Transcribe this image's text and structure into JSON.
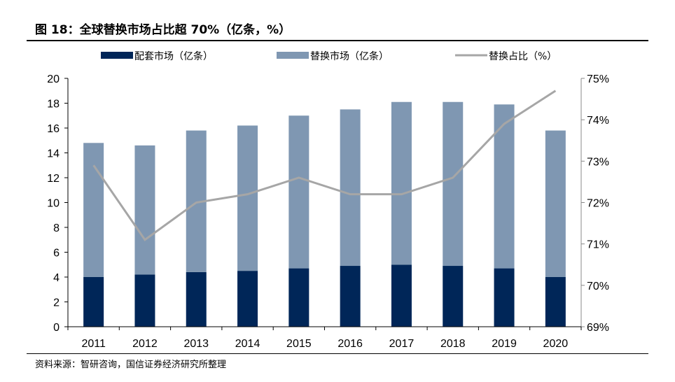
{
  "title": "图 18：全球替换市场占比超 70%（亿条，%）",
  "source": "资料来源：智研咨询，国信证券经济研究所整理",
  "chart_data": {
    "type": "bar",
    "stacked": true,
    "title": "图 18：全球替换市场占比超 70%（亿条，%）",
    "categories": [
      "2011",
      "2012",
      "2013",
      "2014",
      "2015",
      "2016",
      "2017",
      "2018",
      "2019",
      "2020"
    ],
    "series": [
      {
        "name": "配套市场（亿条）",
        "type": "bar",
        "axis": "left",
        "color": "#002658",
        "values": [
          4.0,
          4.2,
          4.4,
          4.5,
          4.7,
          4.9,
          5.0,
          4.9,
          4.7,
          4.0
        ]
      },
      {
        "name": "替换市场（亿条）",
        "type": "bar",
        "axis": "left",
        "color": "#7f97b2",
        "values": [
          10.8,
          10.4,
          11.4,
          11.7,
          12.3,
          12.6,
          13.1,
          13.2,
          13.2,
          11.8
        ]
      },
      {
        "name": "替换占比（%）",
        "type": "line",
        "axis": "right",
        "color": "#a6a6a6",
        "values": [
          72.9,
          71.1,
          72.0,
          72.2,
          72.6,
          72.2,
          72.2,
          72.6,
          73.9,
          74.7
        ]
      }
    ],
    "ylim": [
      0,
      20
    ],
    "yticks": [
      "0",
      "2",
      "4",
      "6",
      "8",
      "10",
      "12",
      "14",
      "16",
      "18",
      "20"
    ],
    "y2lim": [
      69,
      75
    ],
    "y2ticks": [
      "69%",
      "70%",
      "71%",
      "72%",
      "73%",
      "74%",
      "75%"
    ],
    "grid": false,
    "legend": "top"
  }
}
